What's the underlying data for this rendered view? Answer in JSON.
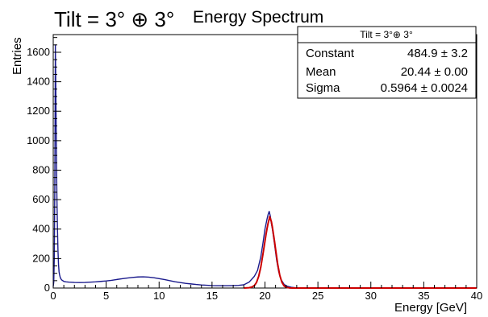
{
  "chart_data": {
    "type": "line",
    "overlay_title": "Tilt = 3° ⊕ 3°",
    "title": "Energy Spectrum",
    "xlabel": "Energy [GeV]",
    "ylabel": "Entries",
    "xlim": [
      0,
      40
    ],
    "ylim": [
      0,
      1720
    ],
    "x_ticks": [
      0,
      5,
      10,
      15,
      20,
      25,
      30,
      35,
      40
    ],
    "y_ticks": [
      0,
      200,
      400,
      600,
      800,
      1000,
      1200,
      1400,
      1600
    ],
    "grid": false,
    "series": [
      {
        "color": "#1a1a8c",
        "x": [
          0.0,
          0.05,
          0.1,
          0.15,
          0.2,
          0.25,
          0.3,
          0.35,
          0.4,
          0.45,
          0.5,
          0.55,
          0.6,
          0.65,
          0.7,
          0.8,
          0.9,
          1.0,
          1.2,
          1.5,
          2.0,
          2.5,
          3.0,
          3.5,
          4.0,
          4.5,
          5.0,
          5.5,
          6.0,
          6.5,
          7.0,
          7.5,
          8.0,
          8.5,
          9.0,
          9.5,
          10.0,
          10.5,
          11.0,
          11.5,
          12.0,
          12.5,
          13.0,
          13.5,
          14.0,
          14.5,
          15.0,
          15.5,
          16.0,
          16.5,
          17.0,
          17.5,
          18.0,
          18.5,
          19.0,
          19.3,
          19.6,
          19.8,
          20.0,
          20.2,
          20.3,
          20.4,
          20.5,
          20.6,
          20.7,
          20.9,
          21.1,
          21.3,
          21.5,
          21.8,
          22.1,
          22.5,
          23.0,
          24.0,
          25.0,
          30.0,
          35.0,
          40.0
        ],
        "y": [
          10,
          40,
          200,
          700,
          1650,
          1300,
          900,
          600,
          400,
          250,
          160,
          110,
          90,
          75,
          65,
          55,
          50,
          45,
          42,
          40,
          38,
          37,
          38,
          40,
          42,
          45,
          48,
          52,
          58,
          63,
          68,
          72,
          75,
          76,
          74,
          70,
          64,
          58,
          50,
          43,
          37,
          32,
          28,
          24,
          21,
          19,
          17,
          16,
          16,
          16,
          17,
          18,
          22,
          40,
          80,
          120,
          210,
          300,
          400,
          470,
          500,
          520,
          490,
          440,
          400,
          300,
          190,
          110,
          60,
          25,
          12,
          5,
          1,
          0,
          0,
          0,
          0,
          0
        ]
      },
      {
        "color": "#cc0000",
        "x": [
          18.0,
          18.5,
          18.8,
          19.0,
          19.2,
          19.4,
          19.6,
          19.8,
          20.0,
          20.1,
          20.2,
          20.3,
          20.4,
          20.44,
          20.5,
          20.6,
          20.7,
          20.8,
          20.9,
          21.0,
          21.2,
          21.4,
          21.6,
          21.8,
          22.0,
          22.3,
          22.6,
          23.0,
          24.0,
          26.0,
          28.0,
          30.0,
          32.0,
          34.0,
          36.0,
          38.0,
          40.0
        ],
        "y": [
          0,
          2,
          8,
          17,
          38,
          78,
          140,
          226,
          318,
          364,
          405,
          441,
          469,
          484.9,
          474,
          452,
          413,
          366,
          318,
          264,
          163,
          86,
          39,
          15,
          5,
          1,
          0,
          0,
          0,
          0,
          0,
          0,
          0,
          0,
          0,
          0,
          0
        ]
      }
    ],
    "stats_box": {
      "header": "Tilt = 3°⊕ 3°",
      "rows": [
        {
          "label": "Constant",
          "value": "484.9 ± 3.2"
        },
        {
          "label": "Mean",
          "value": "20.44 ± 0.00"
        },
        {
          "label": "Sigma",
          "value": "0.5964 ± 0.0024"
        }
      ]
    }
  }
}
